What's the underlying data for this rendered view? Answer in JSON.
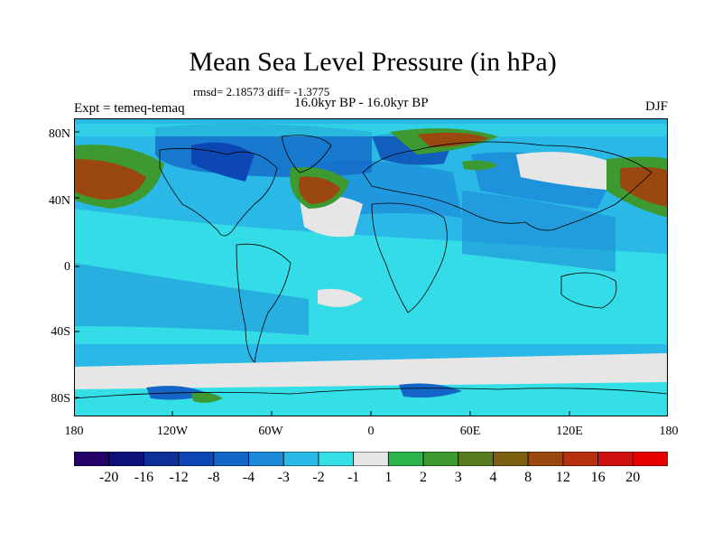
{
  "title": "Mean Sea Level Pressure (in hPa)",
  "stats": "rmsd= 2.18573 diff= -1.3775",
  "experiment": "Expt = temeq-temaq",
  "period": "16.0kyr BP - 16.0kyr BP",
  "season": "DJF",
  "lat_labels": [
    "80N",
    "40N",
    "0",
    "40S",
    "80S"
  ],
  "lon_labels": [
    "180",
    "120W",
    "60W",
    "0",
    "60E",
    "120E",
    "180"
  ],
  "colorbar": {
    "labels": [
      "-20",
      "-16",
      "-12",
      "-8",
      "-4",
      "-3",
      "-2",
      "-1",
      "1",
      "2",
      "3",
      "4",
      "8",
      "12",
      "16",
      "20"
    ],
    "colors": [
      "#240068",
      "#10107a",
      "#0e2f96",
      "#0d47b3",
      "#1366c7",
      "#1c8ad9",
      "#2ab8e6",
      "#34e0e6",
      "#e6e6e6",
      "#2db44a",
      "#3d9a30",
      "#5a7a20",
      "#7a6010",
      "#9a4810",
      "#b83010",
      "#d01010",
      "#e60000"
    ]
  }
}
